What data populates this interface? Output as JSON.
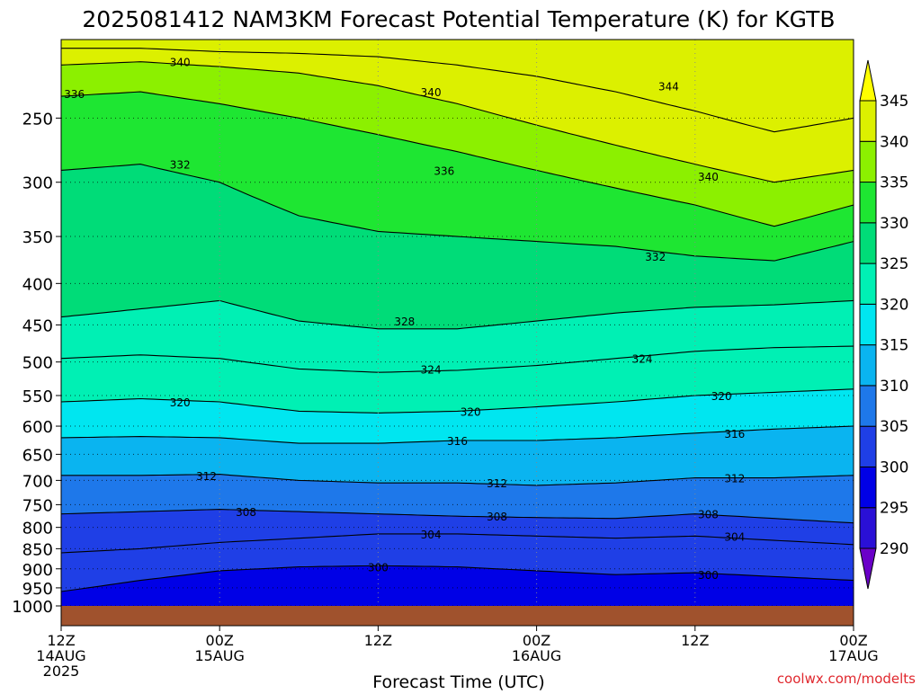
{
  "chart_data": {
    "type": "heatmap",
    "title": "2025081412 NAM3KM Forecast Potential Temperature (K) for KGTB",
    "xlabel": "Forecast Time (UTC)",
    "ylabel": "",
    "credit": "coolwx.com/modelts",
    "y_axis": {
      "scale": "log",
      "inverted": true,
      "range": [
        1000,
        200
      ],
      "ticks": [
        250,
        300,
        350,
        400,
        450,
        500,
        550,
        600,
        650,
        700,
        750,
        800,
        850,
        900,
        950,
        1000
      ]
    },
    "x_axis": {
      "range_hours": [
        0,
        60
      ],
      "ticks": [
        {
          "hour": 0,
          "lines": [
            "12Z",
            "14AUG",
            "2025"
          ]
        },
        {
          "hour": 12,
          "lines": [
            "00Z",
            "15AUG"
          ]
        },
        {
          "hour": 24,
          "lines": [
            "12Z"
          ]
        },
        {
          "hour": 36,
          "lines": [
            "00Z",
            "16AUG"
          ]
        },
        {
          "hour": 48,
          "lines": [
            "12Z"
          ]
        },
        {
          "hour": 60,
          "lines": [
            "00Z",
            "17AUG"
          ]
        }
      ]
    },
    "grid": true,
    "colorbar": {
      "levels": [
        290,
        295,
        300,
        305,
        310,
        315,
        320,
        325,
        330,
        335,
        340,
        345
      ],
      "labels": [
        "290",
        "295",
        "300",
        "305",
        "310",
        "315",
        "320",
        "325",
        "330",
        "335",
        "340",
        "345"
      ],
      "colors": [
        "#6a00c8",
        "#2a10d6",
        "#0000e6",
        "#1f3fe6",
        "#1e78ea",
        "#0ab4f0",
        "#00e6f0",
        "#00f0b4",
        "#00dc78",
        "#1ee632",
        "#8cf000",
        "#dcf000",
        "#ffff00"
      ],
      "extend": "both"
    },
    "hours": [
      0,
      6,
      12,
      18,
      24,
      30,
      36,
      42,
      48,
      54,
      60
    ],
    "isentropes": [
      {
        "theta": 300,
        "pressure": [
          960,
          930,
          905,
          895,
          892,
          895,
          905,
          915,
          910,
          920,
          930
        ],
        "label_hour": 24
      },
      {
        "theta": 304,
        "pressure": [
          860,
          850,
          835,
          825,
          815,
          815,
          820,
          825,
          820,
          830,
          840
        ],
        "label_hour": 28
      },
      {
        "theta": 308,
        "pressure": [
          770,
          765,
          760,
          765,
          770,
          775,
          778,
          780,
          770,
          780,
          790
        ],
        "label_hour": 14
      },
      {
        "theta": 312,
        "pressure": [
          690,
          690,
          688,
          700,
          705,
          705,
          710,
          705,
          695,
          695,
          690
        ],
        "label_hour": 11
      },
      {
        "theta": 316,
        "pressure": [
          620,
          618,
          620,
          630,
          630,
          625,
          625,
          620,
          612,
          605,
          600
        ],
        "label_hour": 31
      },
      {
        "theta": 320,
        "pressure": [
          560,
          555,
          560,
          575,
          578,
          575,
          568,
          560,
          550,
          545,
          540
        ],
        "label_hour": 9
      },
      {
        "theta": 324,
        "pressure": [
          495,
          490,
          495,
          510,
          515,
          512,
          505,
          495,
          485,
          480,
          478
        ],
        "label_hour": 28
      },
      {
        "theta": 328,
        "pressure": [
          440,
          430,
          420,
          445,
          455,
          455,
          445,
          435,
          428,
          425,
          420
        ],
        "label_hour": 26
      },
      {
        "theta": 332,
        "pressure": [
          290,
          285,
          300,
          330,
          345,
          350,
          355,
          360,
          370,
          375,
          355
        ],
        "label_hour": 9
      },
      {
        "theta": 336,
        "pressure": [
          235,
          232,
          240,
          250,
          262,
          275,
          290,
          305,
          320,
          340,
          320
        ],
        "label_hour": 29
      },
      {
        "theta": 340,
        "pressure": [
          215,
          213,
          216,
          220,
          228,
          240,
          255,
          270,
          285,
          300,
          290
        ],
        "label_hour": 9
      },
      {
        "theta": 344,
        "pressure": [
          205,
          205,
          207,
          208,
          210,
          215,
          222,
          232,
          245,
          260,
          250
        ],
        "label_hour": 46
      }
    ],
    "contour_labels": [
      {
        "value": "340",
        "hour": 9,
        "pressure": 213
      },
      {
        "value": "336",
        "hour": 1,
        "pressure": 233
      },
      {
        "value": "340",
        "hour": 28,
        "pressure": 232
      },
      {
        "value": "344",
        "hour": 46,
        "pressure": 228
      },
      {
        "value": "332",
        "hour": 9,
        "pressure": 285
      },
      {
        "value": "336",
        "hour": 29,
        "pressure": 290
      },
      {
        "value": "340",
        "hour": 49,
        "pressure": 295
      },
      {
        "value": "332",
        "hour": 45,
        "pressure": 370
      },
      {
        "value": "328",
        "hour": 26,
        "pressure": 445
      },
      {
        "value": "324",
        "hour": 28,
        "pressure": 510
      },
      {
        "value": "324",
        "hour": 44,
        "pressure": 495
      },
      {
        "value": "320",
        "hour": 9,
        "pressure": 560
      },
      {
        "value": "320",
        "hour": 31,
        "pressure": 575
      },
      {
        "value": "320",
        "hour": 50,
        "pressure": 550
      },
      {
        "value": "316",
        "hour": 30,
        "pressure": 625
      },
      {
        "value": "316",
        "hour": 51,
        "pressure": 612
      },
      {
        "value": "312",
        "hour": 11,
        "pressure": 690
      },
      {
        "value": "312",
        "hour": 33,
        "pressure": 705
      },
      {
        "value": "312",
        "hour": 51,
        "pressure": 695
      },
      {
        "value": "308",
        "hour": 14,
        "pressure": 765
      },
      {
        "value": "308",
        "hour": 33,
        "pressure": 775
      },
      {
        "value": "308",
        "hour": 49,
        "pressure": 770
      },
      {
        "value": "304",
        "hour": 28,
        "pressure": 815
      },
      {
        "value": "304",
        "hour": 51,
        "pressure": 820
      },
      {
        "value": "300",
        "hour": 24,
        "pressure": 895
      },
      {
        "value": "300",
        "hour": 49,
        "pressure": 915
      }
    ]
  }
}
